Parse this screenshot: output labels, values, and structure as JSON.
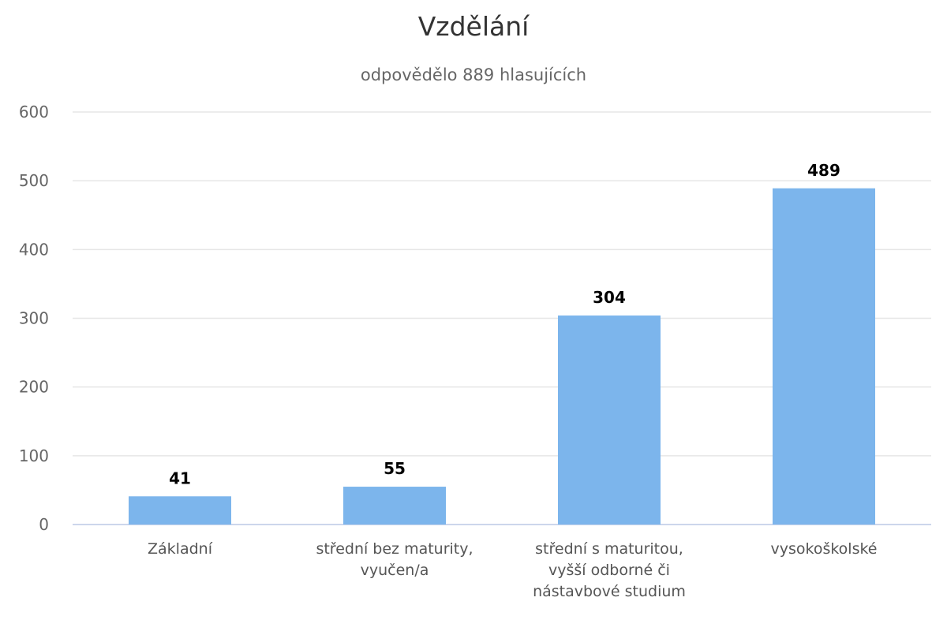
{
  "chart_data": {
    "type": "bar",
    "title": "Vzdělání",
    "subtitle": "odpovědělo 889 hlasujících",
    "xlabel": "",
    "ylabel": "",
    "categories": [
      [
        "Základní"
      ],
      [
        "střední bez maturity,",
        "vyučen/a"
      ],
      [
        "střední s maturitou,",
        "vyšší odborné či",
        "nástavbové studium"
      ],
      [
        "vysokoškolské"
      ]
    ],
    "values": [
      41,
      55,
      304,
      489
    ],
    "data_labels": [
      "41",
      "55",
      "304",
      "489"
    ],
    "ylim": [
      0,
      600
    ],
    "yticks": [
      0,
      100,
      200,
      300,
      400,
      500,
      600
    ],
    "grid": true,
    "legend": "none",
    "bar_color": "#7cb5ec",
    "grid_color": "#e6e6e6",
    "axis_color": "#ccd6eb"
  }
}
